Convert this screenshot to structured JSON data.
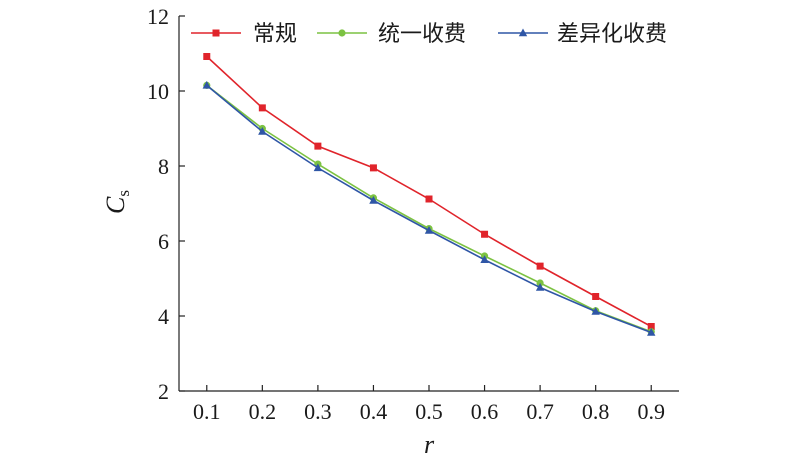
{
  "chart_data": {
    "type": "line",
    "x": [
      0.1,
      0.2,
      0.3,
      0.4,
      0.5,
      0.6,
      0.7,
      0.8,
      0.9
    ],
    "xticks": [
      "0.1",
      "0.2",
      "0.3",
      "0.4",
      "0.5",
      "0.6",
      "0.7",
      "0.8",
      "0.9"
    ],
    "yticks": [
      "2",
      "4",
      "6",
      "8",
      "10",
      "12"
    ],
    "xlabel": "r",
    "ylabel_main": "C",
    "ylabel_sub": "s",
    "xlim": [
      0.05,
      0.95
    ],
    "ylim": [
      2,
      12
    ],
    "grid": false,
    "legend_position": "top-right",
    "series": [
      {
        "name": "常规",
        "color": "#e0242b",
        "marker": "square",
        "values": [
          10.92,
          9.55,
          8.53,
          7.95,
          7.12,
          6.18,
          5.33,
          4.52,
          3.72
        ]
      },
      {
        "name": "统一收费",
        "color": "#7cc242",
        "marker": "circle",
        "values": [
          10.15,
          9.0,
          8.05,
          7.15,
          6.33,
          5.6,
          4.88,
          4.14,
          3.58
        ]
      },
      {
        "name": "差异化收费",
        "color": "#2f56a6",
        "marker": "triangle",
        "values": [
          10.15,
          8.92,
          7.95,
          7.08,
          6.28,
          5.5,
          4.76,
          4.12,
          3.56
        ]
      }
    ]
  }
}
